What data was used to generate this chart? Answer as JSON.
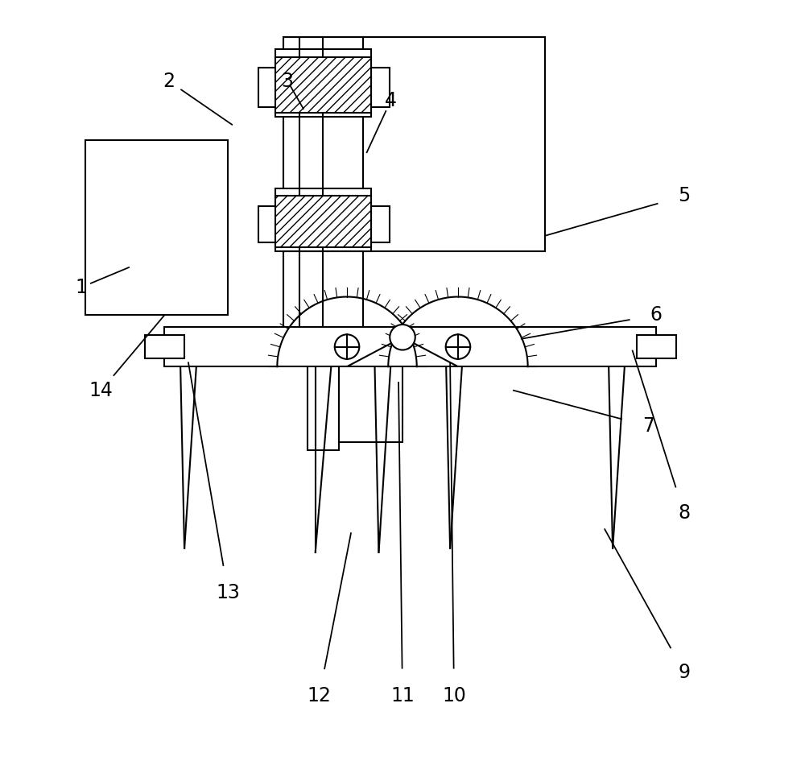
{
  "bg_color": "#ffffff",
  "line_color": "#000000",
  "lw": 1.5,
  "fig_width": 10.0,
  "fig_height": 9.4,
  "label_data": [
    [
      "1",
      0.95,
      5.85,
      1.55,
      6.1
    ],
    [
      "2",
      2.05,
      8.45,
      2.85,
      7.9
    ],
    [
      "3",
      3.55,
      8.45,
      3.75,
      8.1
    ],
    [
      "4",
      4.85,
      8.2,
      4.55,
      7.55
    ],
    [
      "5",
      8.55,
      7.0,
      6.8,
      6.5
    ],
    [
      "6",
      8.2,
      5.5,
      6.5,
      5.2
    ],
    [
      "7",
      8.1,
      4.1,
      6.4,
      4.55
    ],
    [
      "8",
      8.55,
      3.0,
      7.9,
      5.05
    ],
    [
      "9",
      8.55,
      1.0,
      7.55,
      2.8
    ],
    [
      "10",
      5.65,
      0.7,
      5.6,
      4.9
    ],
    [
      "11",
      5.0,
      0.7,
      4.95,
      4.65
    ],
    [
      "12",
      3.95,
      0.7,
      4.35,
      2.75
    ],
    [
      "13",
      2.8,
      2.0,
      2.3,
      4.9
    ],
    [
      "14",
      1.2,
      4.55,
      2.0,
      5.5
    ]
  ]
}
